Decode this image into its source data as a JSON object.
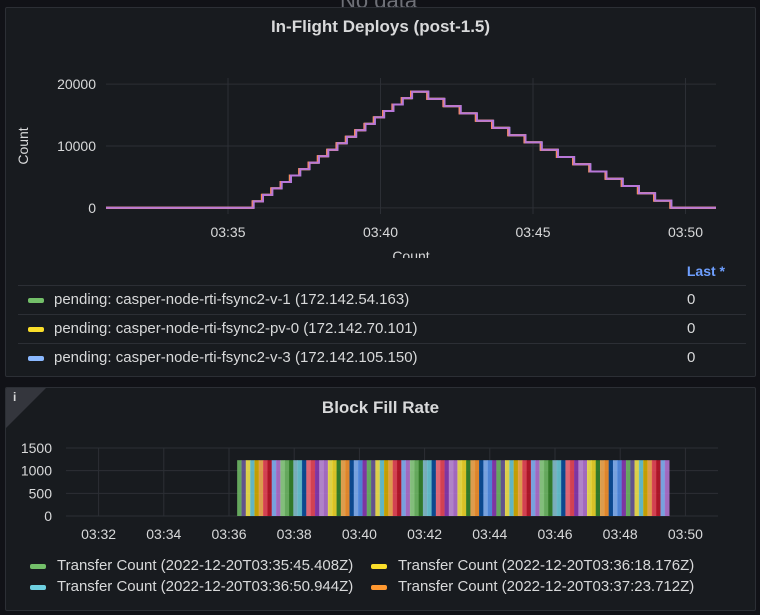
{
  "ghost_text": "No data",
  "panel1": {
    "title": "In-Flight Deploys (post-1.5)",
    "legend_header": "Last *",
    "legend": [
      {
        "label": "pending: casper-node-rti-fsync2-v-1 (172.142.54.163)",
        "value": "0",
        "color": "#73bf69"
      },
      {
        "label": "pending: casper-node-rti-fsync2-pv-0 (172.142.70.101)",
        "value": "0",
        "color": "#fade2a"
      },
      {
        "label": "pending: casper-node-rti-fsync2-v-3 (172.142.105.150)",
        "value": "0",
        "color": "#8ab8ff"
      }
    ]
  },
  "panel2": {
    "title": "Block Fill Rate",
    "info_icon": "i",
    "legend": [
      {
        "label": "Transfer Count (2022-12-20T03:35:45.408Z)",
        "color": "#73bf69"
      },
      {
        "label": "Transfer Count (2022-12-20T03:36:18.176Z)",
        "color": "#fade2a"
      },
      {
        "label": "Transfer Count (2022-12-20T03:36:50.944Z)",
        "color": "#6ed0e0"
      },
      {
        "label": "Transfer Count (2022-12-20T03:37:23.712Z)",
        "color": "#ff9830"
      }
    ]
  },
  "chart_data": [
    {
      "type": "line",
      "title": "In-Flight Deploys (post-1.5)",
      "ylabel": "Count",
      "xlabel": "Count",
      "x_ticks": [
        "03:35",
        "03:40",
        "03:45",
        "03:50"
      ],
      "y_ticks": [
        "0",
        "10000",
        "20000"
      ],
      "xlim": [
        "03:31",
        "03:51"
      ],
      "ylim": [
        -1000,
        21000
      ],
      "grid": true,
      "series": [
        {
          "name": "pending: casper-node-rti-fsync2-v-1 (172.142.54.163)",
          "color": "#73bf69",
          "x": [
            "03:31:00",
            "03:35:30",
            "03:41:00",
            "03:49:30",
            "03:51:00"
          ],
          "y": [
            0,
            0,
            18800,
            0,
            0
          ]
        },
        {
          "name": "pending: casper-node-rti-fsync2-pv-0 (172.142.70.101)",
          "color": "#fade2a",
          "x": [
            "03:31:00",
            "03:35:30",
            "03:41:00",
            "03:49:30",
            "03:51:00"
          ],
          "y": [
            0,
            0,
            18800,
            0,
            0
          ]
        },
        {
          "name": "pending: casper-node-rti-fsync2-v-3 (172.142.105.150)",
          "color": "#8ab8ff",
          "x": [
            "03:31:00",
            "03:35:30",
            "03:41:00",
            "03:49:30",
            "03:51:00"
          ],
          "y": [
            0,
            0,
            18800,
            0,
            0
          ]
        }
      ],
      "extra_colors": [
        "#ff7383",
        "#ff9830",
        "#b877d9"
      ]
    },
    {
      "type": "bar",
      "title": "Block Fill Rate",
      "x_ticks": [
        "03:32",
        "03:34",
        "03:36",
        "03:38",
        "03:40",
        "03:42",
        "03:44",
        "03:46",
        "03:48",
        "03:50"
      ],
      "y_ticks": [
        "0",
        "500",
        "1000",
        "1500"
      ],
      "xlim": [
        "03:31",
        "03:51"
      ],
      "ylim": [
        0,
        1500
      ],
      "grid": true,
      "bar_start": "03:36:15",
      "bar_end": "03:49:30",
      "bar_value": 1230,
      "palette": [
        "#73bf69",
        "#fade2a",
        "#6ed0e0",
        "#ff9830",
        "#f2495c",
        "#5794f2",
        "#b877d9",
        "#705da0",
        "#37872d",
        "#e0b400",
        "#0a50a1",
        "#c4162a",
        "#8f3bb8",
        "#96d98d",
        "#ffee52",
        "#8ac6d6",
        "#ffb357",
        "#ff7383",
        "#8ab8ff",
        "#ca95e5"
      ]
    }
  ]
}
